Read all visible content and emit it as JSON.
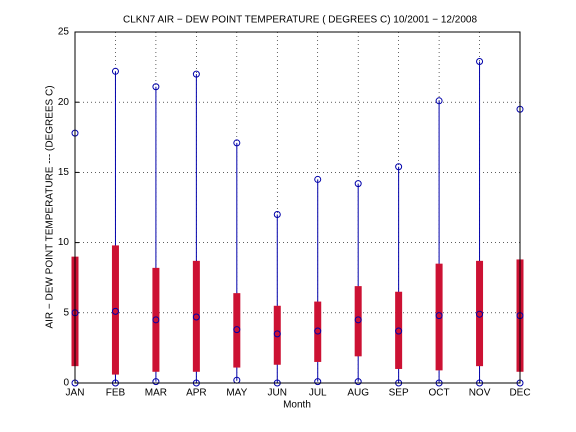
{
  "chart_data": {
    "type": "box",
    "title": "CLKN7  AIR − DEW POINT TEMPERATURE ( DEGREES C) 10/2001 − 12/2008",
    "xlabel": "Month",
    "ylabel": "AIR − DEW POINT TEMPERATURE  --- (DEGREES C)",
    "categories": [
      "JAN",
      "FEB",
      "MAR",
      "APR",
      "MAY",
      "JUN",
      "JUL",
      "AUG",
      "SEP",
      "OCT",
      "NOV",
      "DEC"
    ],
    "min": [
      0,
      0,
      0.1,
      0,
      0.2,
      0,
      0.1,
      0.1,
      0,
      0,
      0,
      0
    ],
    "q1": [
      1.2,
      0.6,
      0.8,
      0.8,
      1.1,
      1.3,
      1.5,
      1.9,
      1.0,
      0.9,
      1.2,
      0.8
    ],
    "median": [
      5.0,
      5.1,
      4.5,
      4.7,
      3.8,
      3.5,
      3.7,
      4.5,
      3.7,
      4.8,
      4.9,
      4.8
    ],
    "q3": [
      9.0,
      9.8,
      8.2,
      8.7,
      6.4,
      5.5,
      5.8,
      6.9,
      6.5,
      8.5,
      8.7,
      8.8
    ],
    "max": [
      17.8,
      22.2,
      21.1,
      22.0,
      17.1,
      12.0,
      14.5,
      14.2,
      15.4,
      20.1,
      22.9,
      19.5
    ],
    "whisker_color": "#0000aa",
    "box_color": "#cc1133",
    "ylim": [
      0,
      25
    ],
    "yticks": [
      0,
      5,
      10,
      15,
      20,
      25
    ],
    "grid": true
  }
}
